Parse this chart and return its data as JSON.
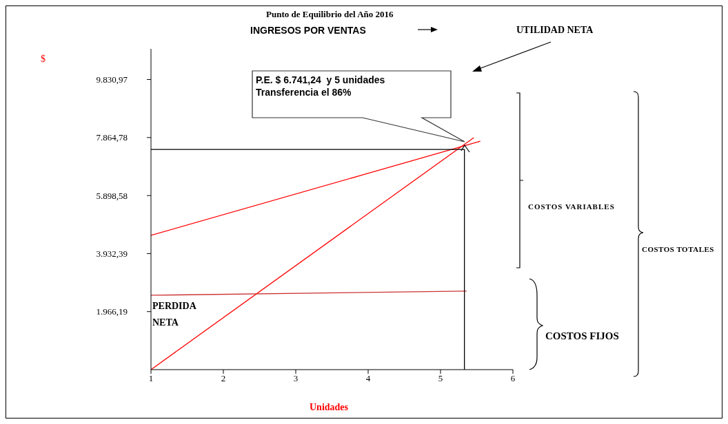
{
  "chart_data": {
    "type": "line",
    "title": "Punto de Equilibrio del Año 2016",
    "xlabel": "Unidades",
    "xlim": [
      1,
      6
    ],
    "xticks": [
      1,
      2,
      3,
      4,
      5,
      6
    ],
    "ylim": [
      0,
      10870
    ],
    "yticks": [
      {
        "value": 1966.19,
        "label": "1.966,19"
      },
      {
        "value": 3932.39,
        "label": "3.932,39"
      },
      {
        "value": 5898.58,
        "label": "5.898,58"
      },
      {
        "value": 7864.78,
        "label": "7.864,78"
      },
      {
        "value": 9830.97,
        "label": "9.830,97"
      }
    ],
    "marker": "none",
    "line_style": "solid",
    "series": [
      {
        "color": "#ff0000",
        "x": [
          1,
          5.46
        ],
        "values": [
          0,
          7860
        ]
      },
      {
        "color": "#ff0000",
        "x": [
          1,
          5.55
        ],
        "values": [
          4550,
          7740
        ]
      },
      {
        "color": "#cc3333",
        "x": [
          1,
          5.36
        ],
        "values": [
          2520,
          2660
        ]
      },
      {
        "color": "#000000",
        "x": [
          1,
          5.33,
          5.33
        ],
        "values": [
          7460,
          7460,
          0
        ]
      }
    ],
    "annotations": [
      "INGRESOS POR VENTAS",
      "UTILIDAD NETA",
      "P.E. $ 6.741,24  y 5 unidades\nTransferencia el 86%",
      "PERDIDA NETA",
      "COSTOS VARIABLES",
      "COSTOS TOTALES",
      "COSTOS FIJOS",
      "$"
    ]
  }
}
